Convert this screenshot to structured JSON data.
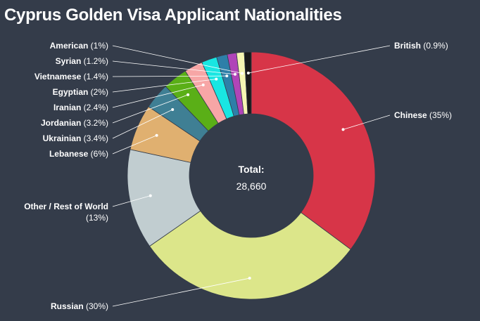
{
  "chart_data": {
    "type": "pie",
    "title": "Cyprus Golden Visa Applicant Nationalities",
    "center_label": "Total:",
    "center_value": "28,660",
    "slices": [
      {
        "name": "Chinese",
        "value_label": "(35%)",
        "value": 35,
        "color": "#d73548"
      },
      {
        "name": "Russian",
        "value_label": "(30%)",
        "value": 30,
        "color": "#dce68a"
      },
      {
        "name": "Other / Rest of World",
        "value_label": "(13%)",
        "value": 13,
        "color": "#c1cdd0"
      },
      {
        "name": "Lebanese",
        "value_label": "(6%)",
        "value": 6,
        "color": "#e0b070"
      },
      {
        "name": "Ukrainian",
        "value_label": "(3.4%)",
        "value": 3.4,
        "color": "#3f7f94"
      },
      {
        "name": "Jordanian",
        "value_label": "(3.2%)",
        "value": 3.2,
        "color": "#5aaf17"
      },
      {
        "name": "Iranian",
        "value_label": "(2.4%)",
        "value": 2.4,
        "color": "#f7a6a6"
      },
      {
        "name": "Egyptian",
        "value_label": "(2%)",
        "value": 2,
        "color": "#19e6e2"
      },
      {
        "name": "Vietnamese",
        "value_label": "(1.4%)",
        "value": 1.4,
        "color": "#2e7fa8"
      },
      {
        "name": "Syrian",
        "value_label": "(1.2%)",
        "value": 1.2,
        "color": "#b045b8"
      },
      {
        "name": "American",
        "value_label": "(1%)",
        "value": 1,
        "color": "#f6f6b2"
      },
      {
        "name": "British",
        "value_label": "(0.9%)",
        "value": 0.9,
        "color": "#1a1a1a"
      }
    ]
  }
}
